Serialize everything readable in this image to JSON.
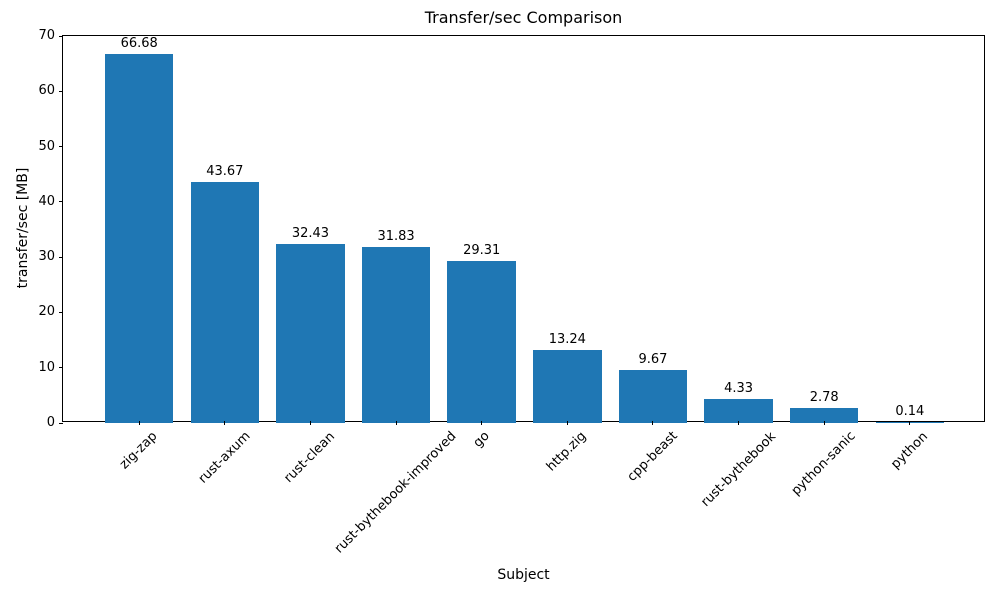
{
  "chart_data": {
    "type": "bar",
    "title": "Transfer/sec Comparison",
    "xlabel": "Subject",
    "ylabel": "transfer/sec [MB]",
    "categories": [
      "zig-zap",
      "rust-axum",
      "rust-clean",
      "rust-bythebook-improved",
      "go",
      "http.zig",
      "cpp-beast",
      "rust-bythebook",
      "python-sanic",
      "python"
    ],
    "values": [
      66.68,
      43.67,
      32.43,
      31.83,
      29.31,
      13.24,
      9.67,
      4.33,
      2.78,
      0.14
    ],
    "value_labels": [
      "66.68",
      "43.67",
      "32.43",
      "31.83",
      "29.31",
      "13.24",
      "9.67",
      "4.33",
      "2.78",
      "0.14"
    ],
    "bar_color": "#1f77b4",
    "text_color": "#000000",
    "ylim": [
      0,
      70
    ],
    "ytick_step": 10,
    "ytick_labels": [
      "0",
      "10",
      "20",
      "30",
      "40",
      "50",
      "60",
      "70"
    ],
    "xlim": [
      -0.89,
      9.89
    ],
    "bar_width": 0.8,
    "xtick_rotation": 45,
    "grid": false,
    "legend": null
  }
}
